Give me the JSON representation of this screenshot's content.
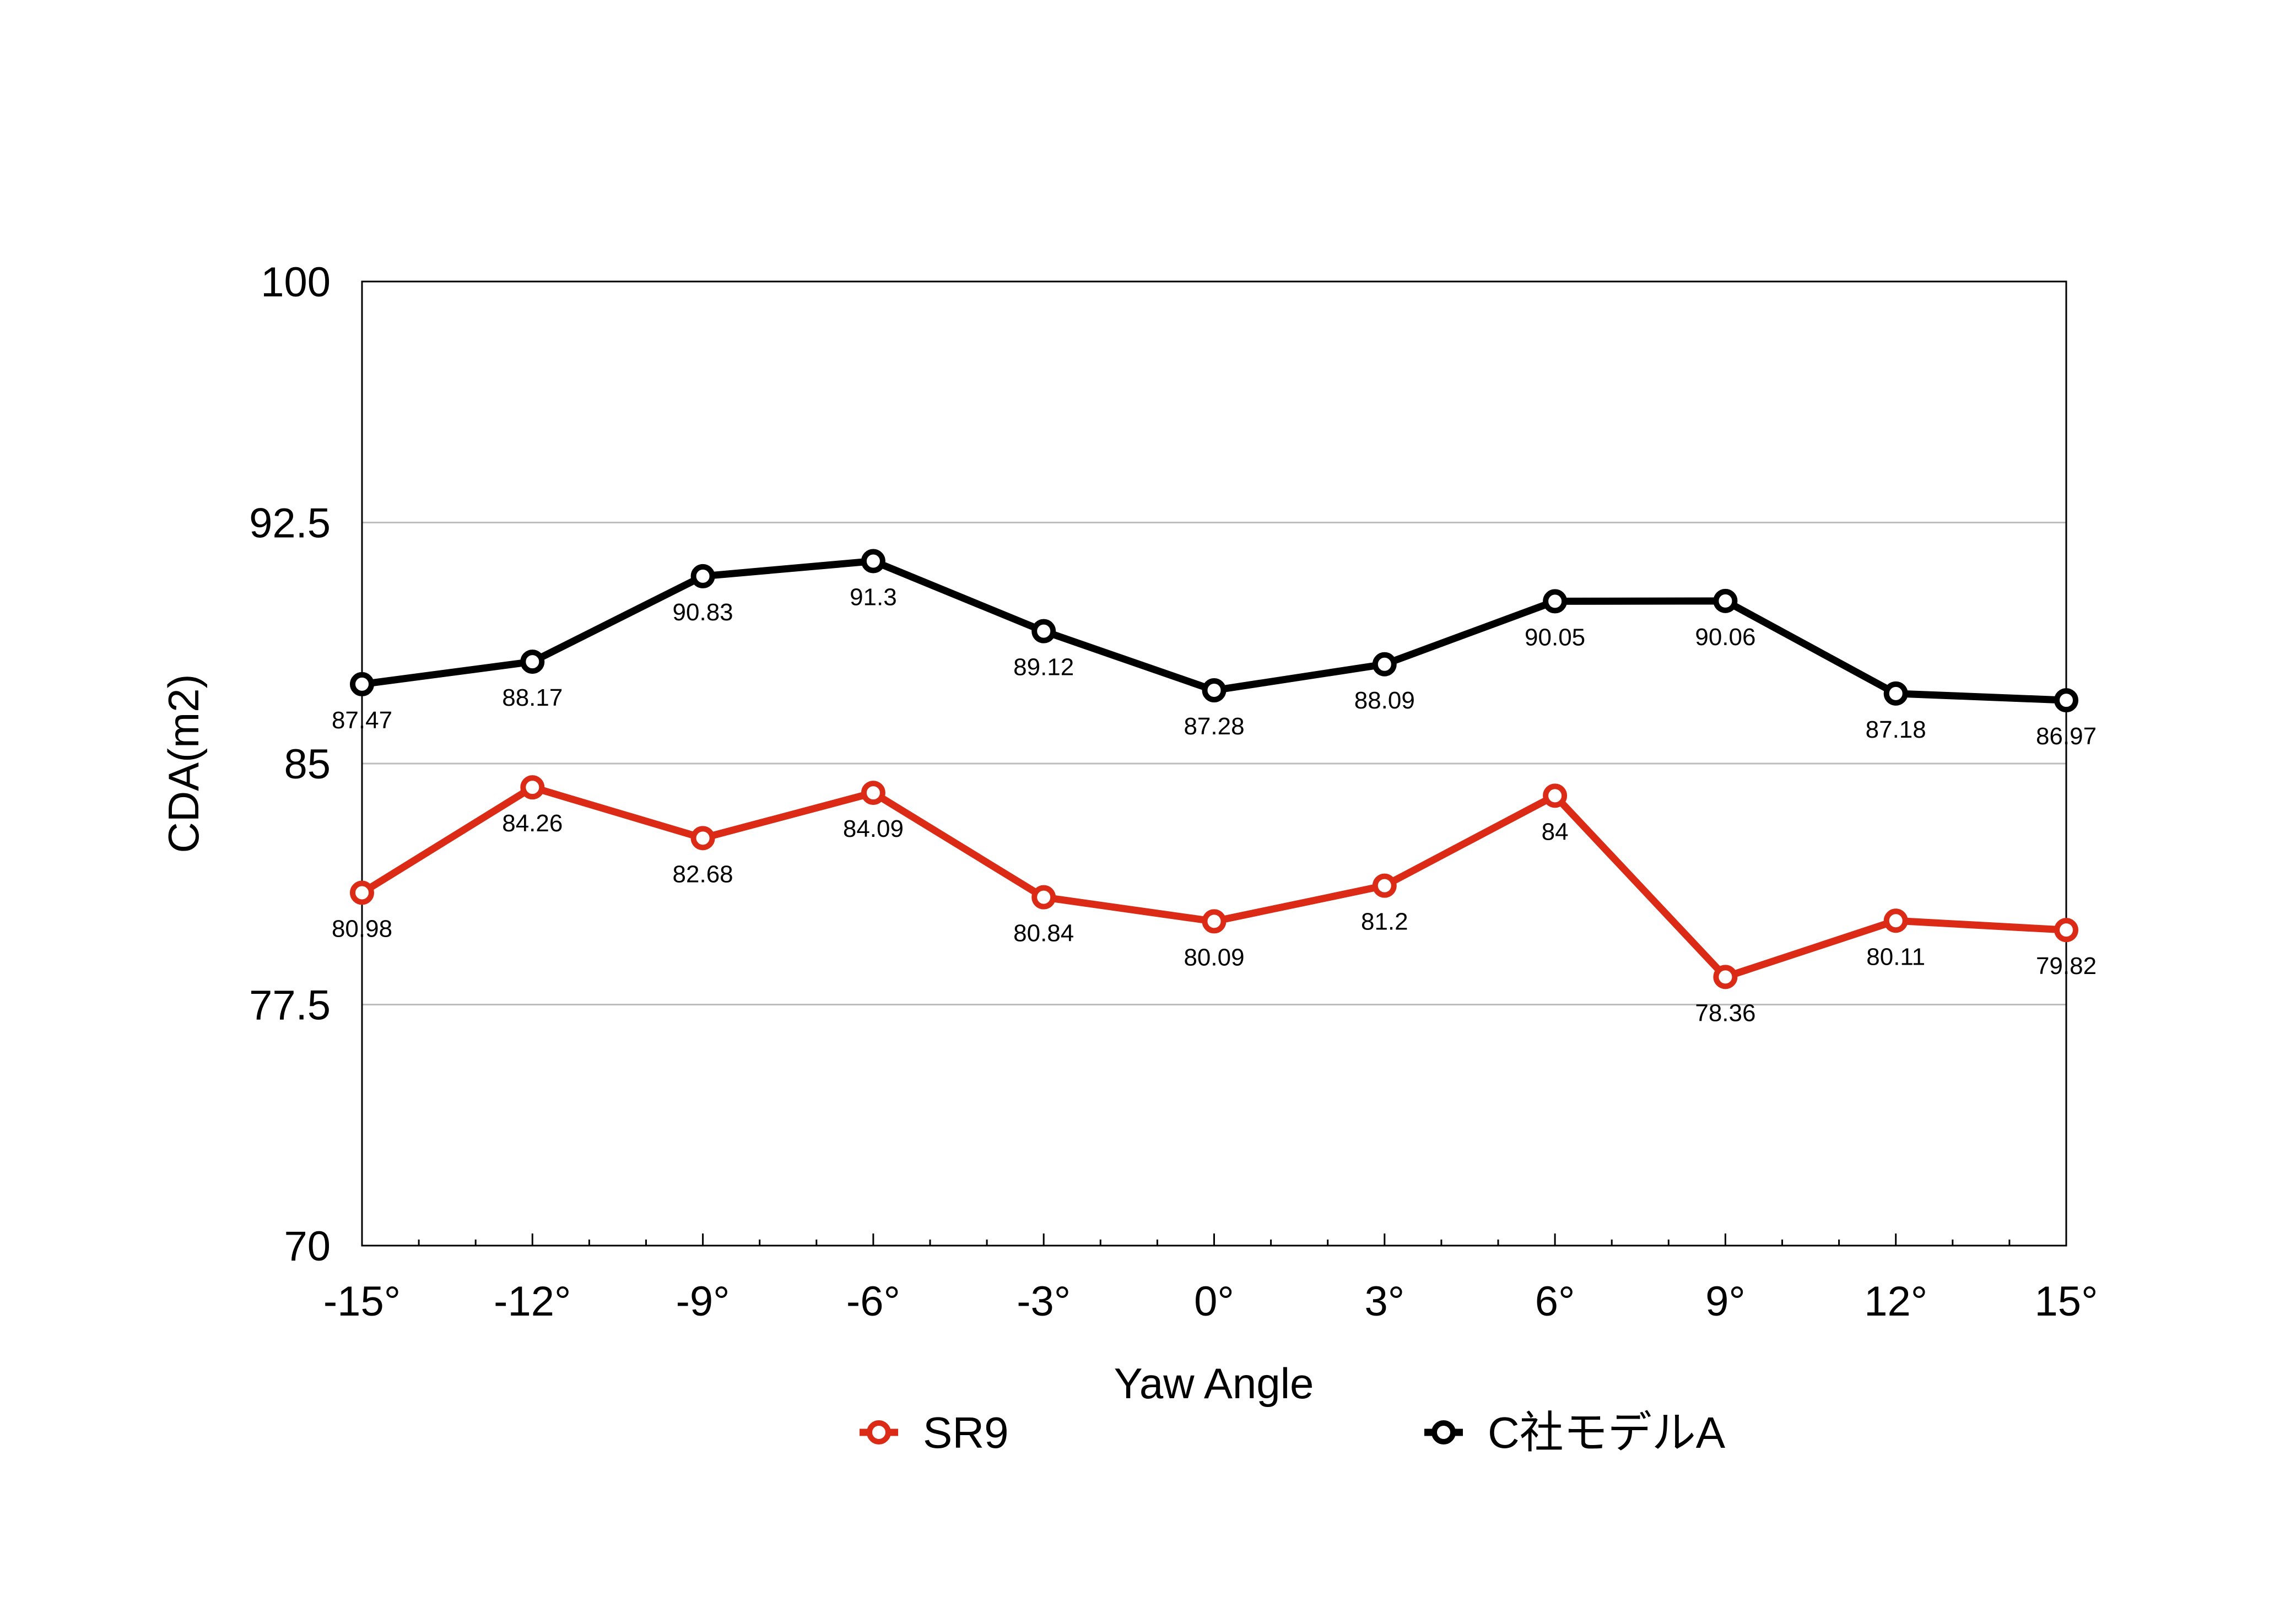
{
  "chart_data": {
    "type": "line",
    "title": "",
    "xlabel": "Yaw Angle",
    "ylabel": "CDA(m2)",
    "categories": [
      "-15°",
      "-12°",
      "-9°",
      "-6°",
      "-3°",
      "0°",
      "3°",
      "6°",
      "9°",
      "12°",
      "15°"
    ],
    "ylim": [
      70,
      100
    ],
    "yticks": [
      70,
      77.5,
      85,
      92.5,
      100
    ],
    "ytick_labels": [
      "70",
      "77.5",
      "85",
      "92.5",
      "100"
    ],
    "grid": "horizontal",
    "legend_position": "bottom",
    "series": [
      {
        "name": "SR9",
        "color": "#db2a16",
        "values": [
          80.98,
          84.26,
          82.68,
          84.09,
          80.84,
          80.09,
          81.2,
          84,
          78.36,
          80.11,
          79.82
        ],
        "labels": [
          "80.98",
          "84.26",
          "82.68",
          "84.09",
          "80.84",
          "80.09",
          "81.2",
          "84",
          "78.36",
          "80.11",
          "79.82"
        ]
      },
      {
        "name": "C社モデルA",
        "color": "#000000",
        "values": [
          87.47,
          88.17,
          90.83,
          91.3,
          89.12,
          87.28,
          88.09,
          90.05,
          90.06,
          87.18,
          86.97
        ],
        "labels": [
          "87.47",
          "88.17",
          "90.83",
          "91.3",
          "89.12",
          "87.28",
          "88.09",
          "90.05",
          "90.06",
          "87.18",
          "86.97"
        ]
      }
    ]
  }
}
